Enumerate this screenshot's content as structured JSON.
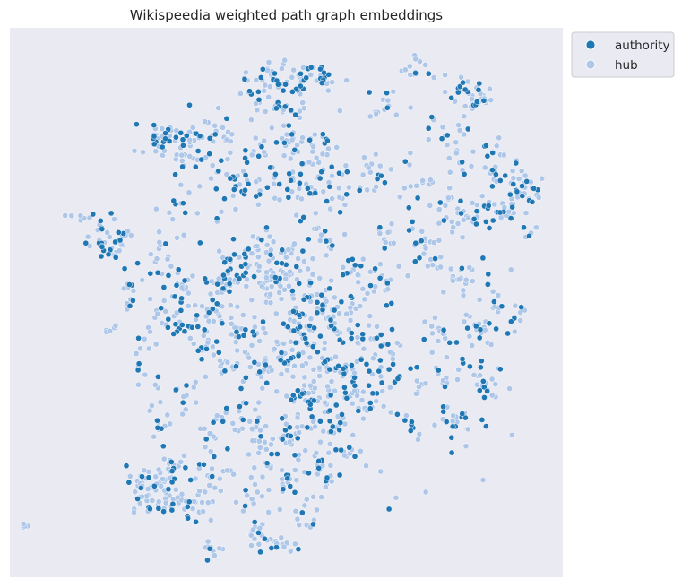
{
  "chart_data": {
    "type": "scatter",
    "title": "Wikispeedia weighted path graph embeddings",
    "xlabel": "",
    "ylabel": "",
    "xlim": [
      -100,
      100
    ],
    "ylim": [
      -100,
      100
    ],
    "axes_visible": false,
    "grid": false,
    "background": "#EAEAF2",
    "legend": {
      "placement": "outside-top-right"
    },
    "series": [
      {
        "name": "authority",
        "color": "#1F77B4",
        "points": []
      },
      {
        "name": "hub",
        "color": "#AEC7E8",
        "points": []
      }
    ],
    "clusters": [
      {
        "cx": -64,
        "cy": 23,
        "sx": 4,
        "sy": 4,
        "n": 45,
        "a": 0.25
      },
      {
        "cx": -73,
        "cy": 31,
        "sx": 2,
        "sy": 1.5,
        "n": 8,
        "a": 0.2
      },
      {
        "cx": -45,
        "cy": 15,
        "sx": 3,
        "sy": 6,
        "n": 16,
        "a": 0.2
      },
      {
        "cx": -56,
        "cy": 5,
        "sx": 2,
        "sy": 4,
        "n": 14,
        "a": 0.35
      },
      {
        "cx": -38,
        "cy": 5,
        "sx": 2,
        "sy": 3,
        "n": 14,
        "a": 0.3
      },
      {
        "cx": -42,
        "cy": -7,
        "sx": 3,
        "sy": 3,
        "n": 20,
        "a": 0.4
      },
      {
        "cx": -34,
        "cy": -9,
        "sx": 2,
        "sy": 1,
        "n": 8,
        "a": 0.35
      },
      {
        "cx": -50,
        "cy": -17,
        "sx": 3,
        "sy": 5,
        "n": 12,
        "a": 0.2
      },
      {
        "cx": -64,
        "cy": -10,
        "sx": 1.5,
        "sy": 1.5,
        "n": 5,
        "a": 0.3
      },
      {
        "cx": -41,
        "cy": 60,
        "sx": 5,
        "sy": 3,
        "n": 42,
        "a": 0.4
      },
      {
        "cx": -26,
        "cy": 62,
        "sx": 4,
        "sy": 3,
        "n": 22,
        "a": 0.35
      },
      {
        "cx": -34,
        "cy": 52,
        "sx": 4,
        "sy": 2,
        "n": 15,
        "a": 0.3
      },
      {
        "cx": -40,
        "cy": 34,
        "sx": 4,
        "sy": 2,
        "n": 8,
        "a": 0.25
      },
      {
        "cx": -20,
        "cy": 45,
        "sx": 6,
        "sy": 5,
        "n": 18,
        "a": 0.35
      },
      {
        "cx": -12,
        "cy": 55,
        "sx": 3,
        "sy": 3,
        "n": 10,
        "a": 0.4
      },
      {
        "cx": -7,
        "cy": 80,
        "sx": 5,
        "sy": 4,
        "n": 40,
        "a": 0.35
      },
      {
        "cx": 10,
        "cy": 82,
        "sx": 5,
        "sy": 3,
        "n": 35,
        "a": 0.45
      },
      {
        "cx": -2,
        "cy": 70,
        "sx": 5,
        "sy": 4,
        "n": 20,
        "a": 0.3
      },
      {
        "cx": 2,
        "cy": 60,
        "sx": 4,
        "sy": 4,
        "n": 20,
        "a": 0.35
      },
      {
        "cx": 12,
        "cy": 55,
        "sx": 6,
        "sy": 4,
        "n": 28,
        "a": 0.4
      },
      {
        "cx": -13,
        "cy": 45,
        "sx": 3,
        "sy": 4,
        "n": 16,
        "a": 0.4
      },
      {
        "cx": 0,
        "cy": 43,
        "sx": 3,
        "sy": 3,
        "n": 14,
        "a": 0.4
      },
      {
        "cx": 7,
        "cy": 40,
        "sx": 3,
        "sy": 5,
        "n": 15,
        "a": 0.35
      },
      {
        "cx": 20,
        "cy": 43,
        "sx": 4,
        "sy": 4,
        "n": 14,
        "a": 0.3
      },
      {
        "cx": 33,
        "cy": 46,
        "sx": 4,
        "sy": 4,
        "n": 12,
        "a": 0.3
      },
      {
        "cx": 36,
        "cy": 71,
        "sx": 3,
        "sy": 3,
        "n": 14,
        "a": 0.3
      },
      {
        "cx": 47,
        "cy": 85,
        "sx": 3,
        "sy": 2,
        "n": 14,
        "a": 0.25
      },
      {
        "cx": 63,
        "cy": 79,
        "sx": 3,
        "sy": 3,
        "n": 10,
        "a": 0.3
      },
      {
        "cx": 69,
        "cy": 74,
        "sx": 3,
        "sy": 3,
        "n": 32,
        "a": 0.25
      },
      {
        "cx": 58,
        "cy": 62,
        "sx": 4,
        "sy": 3,
        "n": 10,
        "a": 0.3
      },
      {
        "cx": 63,
        "cy": 49,
        "sx": 3,
        "sy": 4,
        "n": 12,
        "a": 0.35
      },
      {
        "cx": 74,
        "cy": 55,
        "sx": 2,
        "sy": 2,
        "n": 6,
        "a": 0.3
      },
      {
        "cx": 81,
        "cy": 45,
        "sx": 4,
        "sy": 5,
        "n": 30,
        "a": 0.45
      },
      {
        "cx": 89,
        "cy": 42,
        "sx": 3,
        "sy": 4,
        "n": 14,
        "a": 0.4
      },
      {
        "cx": 73,
        "cy": 32,
        "sx": 4,
        "sy": 3,
        "n": 22,
        "a": 0.45
      },
      {
        "cx": 80,
        "cy": 34,
        "sx": 3,
        "sy": 2,
        "n": 14,
        "a": 0.35
      },
      {
        "cx": 58,
        "cy": 33,
        "sx": 4,
        "sy": 3,
        "n": 18,
        "a": 0.3
      },
      {
        "cx": 48,
        "cy": 41,
        "sx": 3,
        "sy": 3,
        "n": 10,
        "a": 0.25
      },
      {
        "cx": 88,
        "cy": 25,
        "sx": 2,
        "sy": 3,
        "n": 6,
        "a": 0.35
      },
      {
        "cx": 47,
        "cy": 22,
        "sx": 4,
        "sy": 3,
        "n": 14,
        "a": 0.3
      },
      {
        "cx": 37,
        "cy": 23,
        "sx": 3,
        "sy": 2,
        "n": 10,
        "a": 0.3
      },
      {
        "cx": 64,
        "cy": 8,
        "sx": 2,
        "sy": 3,
        "n": 14,
        "a": 0.3
      },
      {
        "cx": 75,
        "cy": 4,
        "sx": 2,
        "sy": 4,
        "n": 8,
        "a": 0.35
      },
      {
        "cx": 52,
        "cy": 14,
        "sx": 3,
        "sy": 3,
        "n": 10,
        "a": 0.25
      },
      {
        "cx": 71,
        "cy": -9,
        "sx": 3,
        "sy": 3,
        "n": 16,
        "a": 0.25
      },
      {
        "cx": 82,
        "cy": -5,
        "sx": 2,
        "sy": 3,
        "n": 10,
        "a": 0.3
      },
      {
        "cx": 56,
        "cy": -13,
        "sx": 4,
        "sy": 4,
        "n": 16,
        "a": 0.35
      },
      {
        "cx": 72,
        "cy": -28,
        "sx": 3,
        "sy": 5,
        "n": 24,
        "a": 0.4
      },
      {
        "cx": 52,
        "cy": -28,
        "sx": 4,
        "sy": 4,
        "n": 18,
        "a": 0.3
      },
      {
        "cx": 37,
        "cy": -22,
        "sx": 4,
        "sy": 6,
        "n": 20,
        "a": 0.35
      },
      {
        "cx": 66,
        "cy": -44,
        "sx": 3,
        "sy": 2,
        "n": 10,
        "a": 0.5
      },
      {
        "cx": 58,
        "cy": -41,
        "sx": 3,
        "sy": 3,
        "n": 10,
        "a": 0.4
      },
      {
        "cx": 47,
        "cy": -43,
        "sx": 3,
        "sy": 3,
        "n": 10,
        "a": 0.3
      },
      {
        "cx": 22,
        "cy": -55,
        "sx": 4,
        "sy": 2,
        "n": 12,
        "a": 0.3
      },
      {
        "cx": 13,
        "cy": -64,
        "sx": 4,
        "sy": 3,
        "n": 14,
        "a": 0.3
      },
      {
        "cx": 6,
        "cy": -78,
        "sx": 4,
        "sy": 4,
        "n": 14,
        "a": 0.3
      },
      {
        "cx": -4,
        "cy": -88,
        "sx": 4,
        "sy": 2,
        "n": 18,
        "a": 0.2
      },
      {
        "cx": -12,
        "cy": -83,
        "sx": 3,
        "sy": 2,
        "n": 10,
        "a": 0.3
      },
      {
        "cx": -26,
        "cy": -89,
        "sx": 3,
        "sy": 2,
        "n": 10,
        "a": 0.3
      },
      {
        "cx": -45,
        "cy": -70,
        "sx": 5,
        "sy": 4,
        "n": 55,
        "a": 0.1
      },
      {
        "cx": -33,
        "cy": -72,
        "sx": 4,
        "sy": 4,
        "n": 25,
        "a": 0.2
      },
      {
        "cx": -40,
        "cy": -60,
        "sx": 4,
        "sy": 3,
        "n": 20,
        "a": 0.3
      },
      {
        "cx": -53,
        "cy": -64,
        "sx": 3,
        "sy": 3,
        "n": 15,
        "a": 0.3
      },
      {
        "cx": -28,
        "cy": -62,
        "sx": 4,
        "sy": 3,
        "n": 15,
        "a": 0.35
      },
      {
        "cx": -45,
        "cy": -45,
        "sx": 3,
        "sy": 4,
        "n": 14,
        "a": 0.35
      },
      {
        "cx": -29,
        "cy": -45,
        "sx": 3,
        "sy": 3,
        "n": 10,
        "a": 0.35
      },
      {
        "cx": -38,
        "cy": -33,
        "sx": 3,
        "sy": 3,
        "n": 10,
        "a": 0.3
      },
      {
        "cx": -17,
        "cy": -43,
        "sx": 4,
        "sy": 4,
        "n": 16,
        "a": 0.35
      },
      {
        "cx": -8,
        "cy": -49,
        "sx": 4,
        "sy": 3,
        "n": 22,
        "a": 0.2
      },
      {
        "cx": 4,
        "cy": -48,
        "sx": 4,
        "sy": 4,
        "n": 20,
        "a": 0.35
      },
      {
        "cx": 16,
        "cy": -45,
        "sx": 3,
        "sy": 4,
        "n": 22,
        "a": 0.5
      },
      {
        "cx": 11,
        "cy": -57,
        "sx": 4,
        "sy": 3,
        "n": 15,
        "a": 0.45
      },
      {
        "cx": -9,
        "cy": -61,
        "sx": 3,
        "sy": 3,
        "n": 10,
        "a": 0.25
      },
      {
        "cx": -14,
        "cy": -72,
        "sx": 3,
        "sy": 3,
        "n": 10,
        "a": 0.25
      },
      {
        "cx": 0,
        "cy": -66,
        "sx": 3,
        "sy": 3,
        "n": 12,
        "a": 0.3
      },
      {
        "cx": 7,
        "cy": -35,
        "sx": 4,
        "sy": 4,
        "n": 25,
        "a": 0.4
      },
      {
        "cx": 20,
        "cy": -35,
        "sx": 4,
        "sy": 4,
        "n": 22,
        "a": 0.4
      },
      {
        "cx": 31,
        "cy": -37,
        "sx": 3,
        "sy": 4,
        "n": 18,
        "a": 0.35
      },
      {
        "cx": 25,
        "cy": -25,
        "sx": 3,
        "sy": 3,
        "n": 18,
        "a": 0.45
      },
      {
        "cx": 13,
        "cy": -22,
        "sx": 4,
        "sy": 3,
        "n": 25,
        "a": 0.35
      },
      {
        "cx": 2,
        "cy": -18,
        "sx": 5,
        "sy": 4,
        "n": 30,
        "a": 0.45
      },
      {
        "cx": -7,
        "cy": -25,
        "sx": 4,
        "sy": 4,
        "n": 20,
        "a": 0.35
      },
      {
        "cx": -20,
        "cy": -25,
        "sx": 4,
        "sy": 4,
        "n": 18,
        "a": 0.35
      },
      {
        "cx": -14,
        "cy": -10,
        "sx": 4,
        "sy": 4,
        "n": 22,
        "a": 0.4
      },
      {
        "cx": -30,
        "cy": -16,
        "sx": 3,
        "sy": 3,
        "n": 14,
        "a": 0.45
      },
      {
        "cx": -26,
        "cy": -3,
        "sx": 4,
        "sy": 3,
        "n": 20,
        "a": 0.4
      },
      {
        "cx": -24,
        "cy": 7,
        "sx": 3,
        "sy": 3,
        "n": 20,
        "a": 0.4
      },
      {
        "cx": -17,
        "cy": 11,
        "sx": 4,
        "sy": 3,
        "n": 18,
        "a": 0.45
      },
      {
        "cx": -10,
        "cy": 21,
        "sx": 4,
        "sy": 3,
        "n": 20,
        "a": 0.35
      },
      {
        "cx": -5,
        "cy": 8,
        "sx": 4,
        "sy": 4,
        "n": 40,
        "a": 0.1
      },
      {
        "cx": 3,
        "cy": 15,
        "sx": 3,
        "sy": 3,
        "n": 18,
        "a": 0.35
      },
      {
        "cx": 7,
        "cy": 3,
        "sx": 4,
        "sy": 4,
        "n": 22,
        "a": 0.4
      },
      {
        "cx": 4,
        "cy": -7,
        "sx": 4,
        "sy": 4,
        "n": 25,
        "a": 0.5
      },
      {
        "cx": 15,
        "cy": 0,
        "sx": 3,
        "sy": 4,
        "n": 18,
        "a": 0.4
      },
      {
        "cx": 26,
        "cy": 1,
        "sx": 3,
        "sy": 3,
        "n": 14,
        "a": 0.45
      },
      {
        "cx": 19,
        "cy": -10,
        "sx": 4,
        "sy": 3,
        "n": 20,
        "a": 0.4
      },
      {
        "cx": 30,
        "cy": -12,
        "sx": 4,
        "sy": 3,
        "n": 14,
        "a": 0.4
      },
      {
        "cx": 14,
        "cy": 23,
        "sx": 4,
        "sy": 4,
        "n": 15,
        "a": 0.25
      },
      {
        "cx": 25,
        "cy": 14,
        "sx": 3,
        "sy": 4,
        "n": 15,
        "a": 0.3
      },
      {
        "cx": 35,
        "cy": 8,
        "sx": 4,
        "sy": 4,
        "n": 15,
        "a": 0.25
      },
      {
        "cx": -95,
        "cy": -82,
        "sx": 0.8,
        "sy": 0.8,
        "n": 4,
        "a": 0
      }
    ]
  }
}
